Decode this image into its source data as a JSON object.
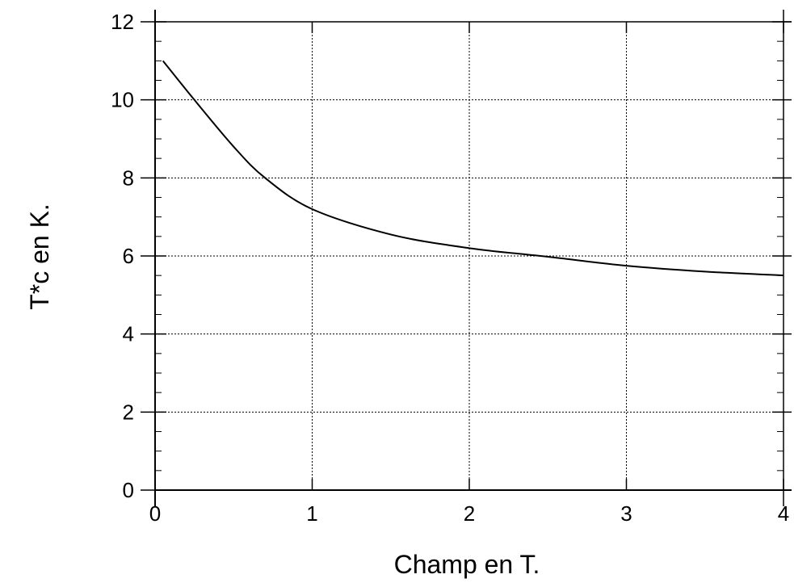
{
  "chart_data": {
    "type": "line",
    "title": "",
    "xlabel": "Champ en T.",
    "ylabel": "T*c en K.",
    "xlim": [
      0,
      4
    ],
    "ylim": [
      0,
      12
    ],
    "x_ticks": [
      "0",
      "1",
      "2",
      "3",
      "4"
    ],
    "y_ticks": [
      "0",
      "2",
      "4",
      "6",
      "8",
      "10",
      "12"
    ],
    "grid": true,
    "legend": "none",
    "line_color": "#000000",
    "series": [
      {
        "x": [
          0.05,
          0.25,
          0.5,
          0.7,
          1.0,
          1.5,
          2.0,
          2.5,
          3.0,
          3.5,
          4.0
        ],
        "y": [
          11.0,
          10.0,
          8.8,
          8.0,
          7.2,
          6.55,
          6.2,
          5.98,
          5.75,
          5.6,
          5.5
        ]
      }
    ]
  }
}
